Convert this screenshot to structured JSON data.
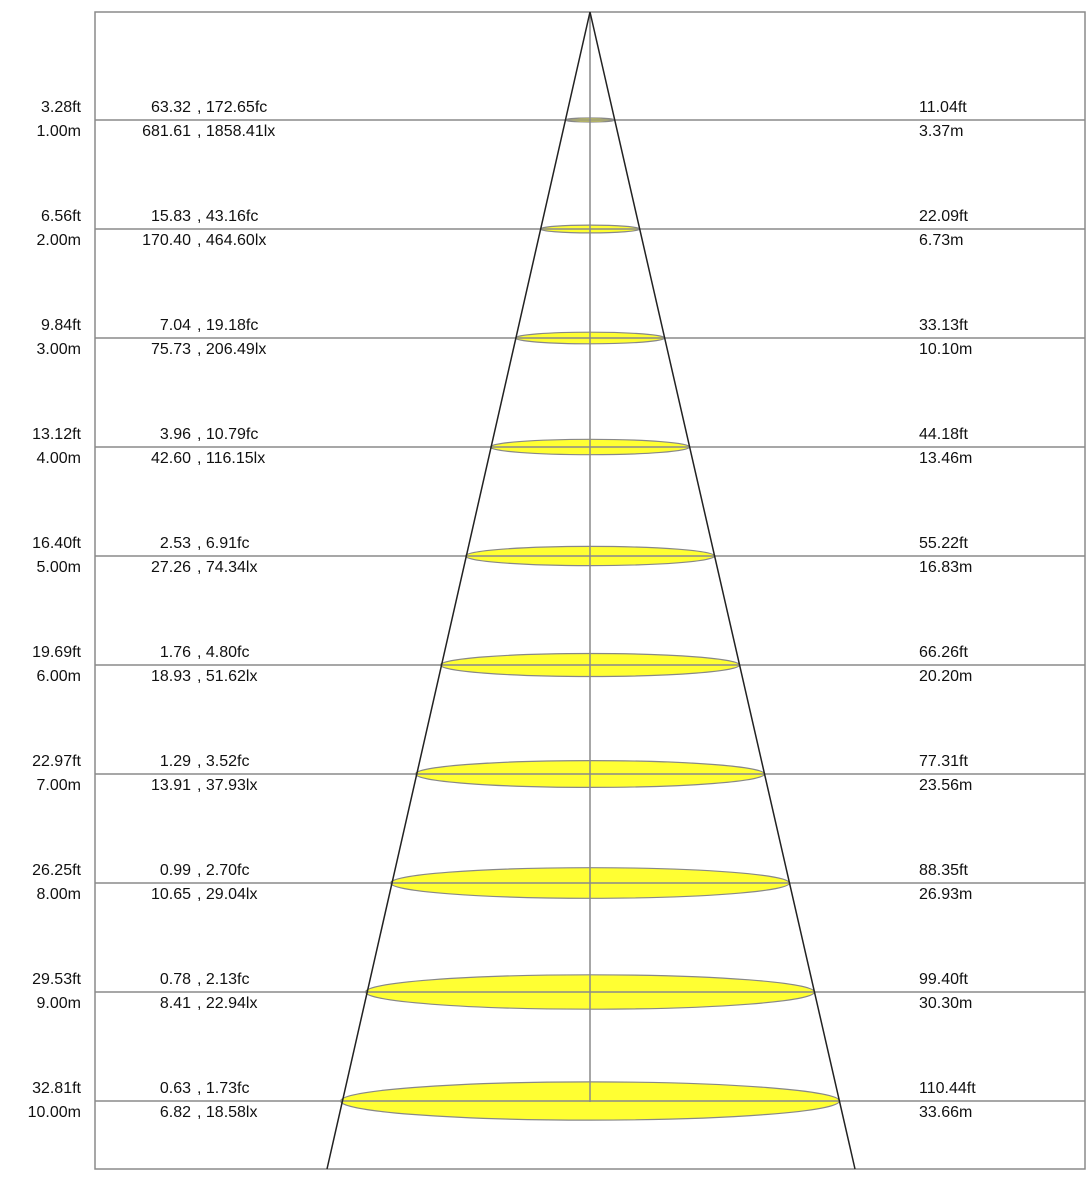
{
  "diagram": {
    "type": "beam-angle-cone",
    "colors": {
      "frame": "#8a8a8a",
      "cone": "#222222",
      "spot_fill": "#ffff33",
      "spot_stroke": "#888888",
      "text": "#111111"
    },
    "rows": [
      {
        "dist_ft": "3.28ft",
        "dist_m": "1.00m",
        "fc_cd": "63.32",
        "fc": ", 172.65fc",
        "lx_cd": "681.61",
        "lx": ", 1858.41lx",
        "dia_ft": "11.04ft",
        "dia_m": "3.37m"
      },
      {
        "dist_ft": "6.56ft",
        "dist_m": "2.00m",
        "fc_cd": "15.83",
        "fc": ", 43.16fc",
        "lx_cd": "170.40",
        "lx": ", 464.60lx",
        "dia_ft": "22.09ft",
        "dia_m": "6.73m"
      },
      {
        "dist_ft": "9.84ft",
        "dist_m": "3.00m",
        "fc_cd": "7.04",
        "fc": ", 19.18fc",
        "lx_cd": "75.73",
        "lx": ", 206.49lx",
        "dia_ft": "33.13ft",
        "dia_m": "10.10m"
      },
      {
        "dist_ft": "13.12ft",
        "dist_m": "4.00m",
        "fc_cd": "3.96",
        "fc": ", 10.79fc",
        "lx_cd": "42.60",
        "lx": ", 116.15lx",
        "dia_ft": "44.18ft",
        "dia_m": "13.46m"
      },
      {
        "dist_ft": "16.40ft",
        "dist_m": "5.00m",
        "fc_cd": "2.53",
        "fc": ", 6.91fc",
        "lx_cd": "27.26",
        "lx": ", 74.34lx",
        "dia_ft": "55.22ft",
        "dia_m": "16.83m"
      },
      {
        "dist_ft": "19.69ft",
        "dist_m": "6.00m",
        "fc_cd": "1.76",
        "fc": ", 4.80fc",
        "lx_cd": "18.93",
        "lx": ", 51.62lx",
        "dia_ft": "66.26ft",
        "dia_m": "20.20m"
      },
      {
        "dist_ft": "22.97ft",
        "dist_m": "7.00m",
        "fc_cd": "1.29",
        "fc": ", 3.52fc",
        "lx_cd": "13.91",
        "lx": ", 37.93lx",
        "dia_ft": "77.31ft",
        "dia_m": "23.56m"
      },
      {
        "dist_ft": "26.25ft",
        "dist_m": "8.00m",
        "fc_cd": "0.99",
        "fc": ", 2.70fc",
        "lx_cd": "10.65",
        "lx": ", 29.04lx",
        "dia_ft": "88.35ft",
        "dia_m": "26.93m"
      },
      {
        "dist_ft": "29.53ft",
        "dist_m": "9.00m",
        "fc_cd": "0.78",
        "fc": ", 2.13fc",
        "lx_cd": "8.41",
        "lx": ", 22.94lx",
        "dia_ft": "99.40ft",
        "dia_m": "30.30m"
      },
      {
        "dist_ft": "32.81ft",
        "dist_m": "10.00m",
        "fc_cd": "0.63",
        "fc": ", 1.73fc",
        "lx_cd": "6.82",
        "lx": ", 18.58lx",
        "dia_ft": "110.44ft",
        "dia_m": "33.66m"
      }
    ]
  }
}
